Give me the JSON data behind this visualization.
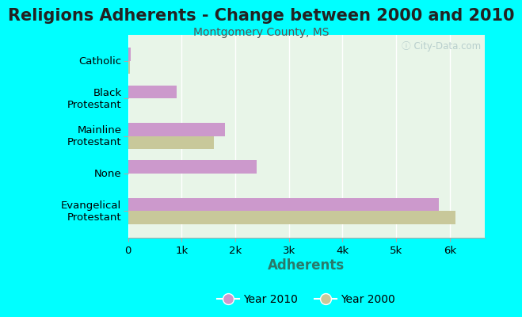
{
  "title": "Religions Adherents - Change between 2000 and 2010",
  "subtitle": "Montgomery County, MS",
  "xlabel": "Adherents",
  "categories": [
    "Catholic",
    "Black\nProtestant",
    "Mainline\nProtestant",
    "None",
    "Evangelical\nProtestant"
  ],
  "year2010": [
    50,
    900,
    1800,
    2400,
    5800
  ],
  "year2000": [
    35,
    0,
    1600,
    0,
    6100
  ],
  "color_2010": "#cc99cc",
  "color_2000": "#c8c89a",
  "bg_color": "#00ffff",
  "plot_bg_top": "#d6edd6",
  "plot_bg_bottom": "#f0faf0",
  "xlim": [
    0,
    6650
  ],
  "xticks": [
    0,
    1000,
    2000,
    3000,
    4000,
    5000,
    6000
  ],
  "xticklabels": [
    "0",
    "1k",
    "2k",
    "3k",
    "4k",
    "5k",
    "6k"
  ],
  "bar_height": 0.35,
  "watermark": "ⓘ City-Data.com",
  "title_fontsize": 15,
  "subtitle_fontsize": 10,
  "xlabel_fontsize": 12,
  "tick_fontsize": 9.5,
  "legend_fontsize": 10
}
